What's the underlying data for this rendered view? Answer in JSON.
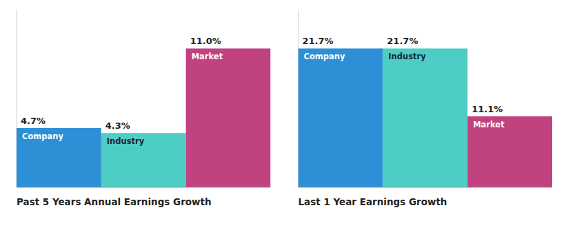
{
  "chart_data": [
    {
      "type": "bar",
      "title": "Past 5 Years Annual Earnings Growth",
      "categories": [
        "Company",
        "Industry",
        "Market"
      ],
      "values": [
        4.7,
        4.3,
        11.0
      ],
      "value_labels": [
        "4.7%",
        "4.3%",
        "11.0%"
      ],
      "colors": [
        "#2d8fd5",
        "#4ecdc4",
        "#c0427e"
      ],
      "ylim": [
        0,
        14.08
      ],
      "data_labels": true,
      "tick_labels": false
    },
    {
      "type": "bar",
      "title": "Last 1 Year Earnings Growth",
      "categories": [
        "Company",
        "Industry",
        "Market"
      ],
      "values": [
        21.7,
        21.7,
        11.1
      ],
      "value_labels": [
        "21.7%",
        "21.7%",
        "11.1%"
      ],
      "colors": [
        "#2d8fd5",
        "#4ecdc4",
        "#c0427e"
      ],
      "ylim": [
        0,
        27.776
      ],
      "data_labels": true,
      "tick_labels": false
    }
  ]
}
